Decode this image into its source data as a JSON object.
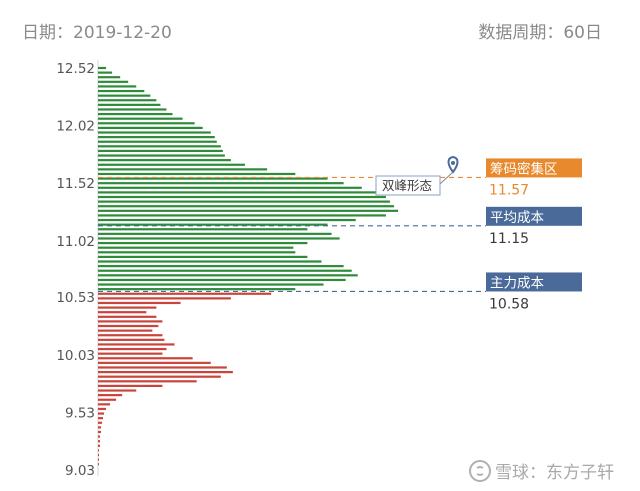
{
  "header": {
    "date_label": "日期：2019-12-20",
    "period_label": "数据周期：60日"
  },
  "colors": {
    "profit_green": "#2e8b3a",
    "loss_red": "#c9453c",
    "orange_accent": "#e8892e",
    "blue_accent": "#4a6a9a",
    "annotation_pin": "#4a6a9a"
  },
  "chart_data": {
    "type": "bar",
    "orientation": "horizontal",
    "ytick_labels": [
      "12.52",
      "12.02",
      "11.52",
      "11.02",
      "10.53",
      "10.03",
      "9.53",
      "9.03"
    ],
    "ylim": [
      9.03,
      12.52
    ],
    "grid": false,
    "split_price": 10.58,
    "prices": [
      12.52,
      12.48,
      12.44,
      12.4,
      12.36,
      12.32,
      12.28,
      12.24,
      12.2,
      12.16,
      12.12,
      12.08,
      12.04,
      12.0,
      11.96,
      11.92,
      11.88,
      11.84,
      11.8,
      11.76,
      11.72,
      11.68,
      11.64,
      11.6,
      11.56,
      11.52,
      11.48,
      11.44,
      11.4,
      11.36,
      11.32,
      11.28,
      11.24,
      11.2,
      11.16,
      11.12,
      11.08,
      11.04,
      11.0,
      10.96,
      10.92,
      10.88,
      10.84,
      10.8,
      10.76,
      10.72,
      10.68,
      10.64,
      10.6,
      10.56,
      10.52,
      10.48,
      10.44,
      10.4,
      10.36,
      10.32,
      10.28,
      10.24,
      10.2,
      10.16,
      10.12,
      10.08,
      10.04,
      10.0,
      9.96,
      9.92,
      9.88,
      9.84,
      9.8,
      9.76,
      9.72,
      9.68,
      9.64,
      9.6,
      9.56,
      9.52,
      9.48,
      9.44,
      9.4,
      9.36,
      9.32,
      9.28,
      9.24,
      9.2,
      9.16,
      9.12,
      9.08
    ],
    "volumes": [
      8,
      14,
      22,
      30,
      38,
      46,
      52,
      58,
      62,
      68,
      74,
      84,
      96,
      104,
      112,
      116,
      118,
      122,
      124,
      126,
      132,
      146,
      168,
      196,
      228,
      244,
      262,
      282,
      286,
      290,
      294,
      298,
      286,
      256,
      228,
      208,
      232,
      240,
      208,
      194,
      196,
      208,
      222,
      244,
      252,
      258,
      246,
      224,
      196,
      172,
      132,
      82,
      58,
      48,
      58,
      64,
      60,
      54,
      64,
      66,
      76,
      68,
      64,
      94,
      112,
      128,
      134,
      122,
      98,
      64,
      38,
      24,
      18,
      12,
      8,
      6,
      5,
      4,
      3,
      3,
      2,
      2,
      2,
      1,
      1,
      1,
      1
    ]
  },
  "levels": [
    {
      "id": "chip-dense",
      "label": "筹码密集区",
      "value": "11.57",
      "price": 11.57
    },
    {
      "id": "avg-cost",
      "label": "平均成本",
      "value": "11.15",
      "price": 11.15
    },
    {
      "id": "main-cost",
      "label": "主力成本",
      "value": "10.58",
      "price": 10.58
    }
  ],
  "annotation": {
    "label": "双峰形态"
  },
  "watermark": {
    "text": "雪球：东方子轩"
  }
}
